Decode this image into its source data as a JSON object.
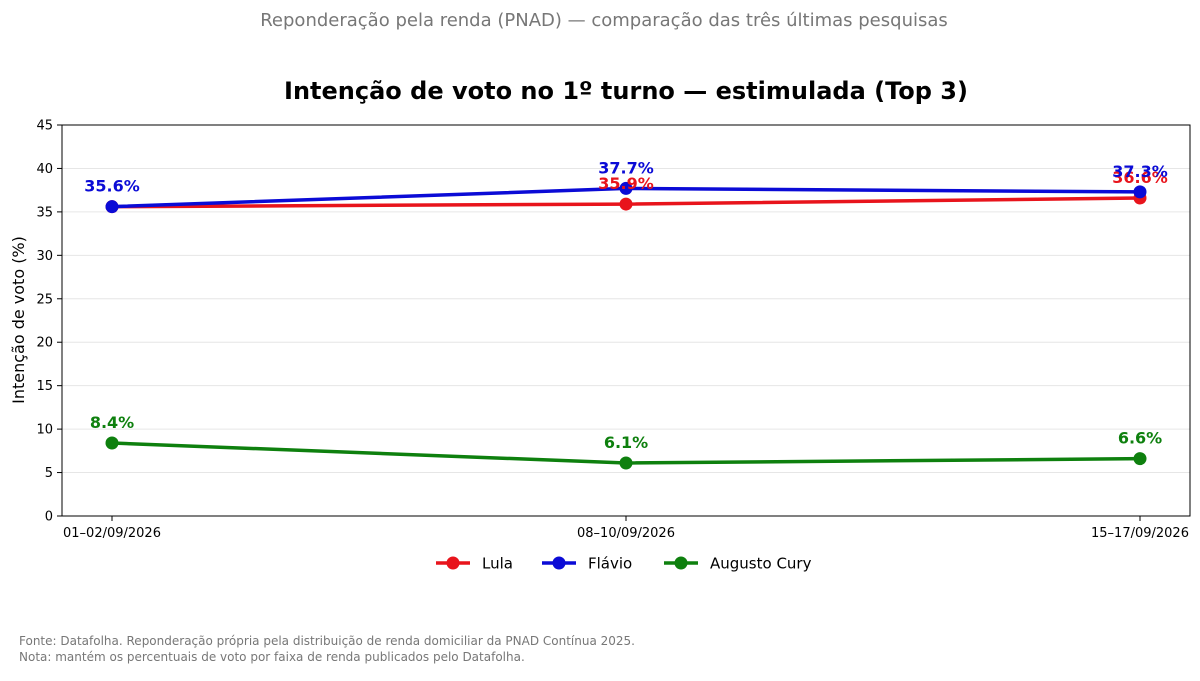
{
  "suptitle": "Reponderação pela renda (PNAD) — comparação das três últimas pesquisas",
  "chart_data": {
    "type": "line",
    "title": "Intenção de voto no 1º turno — estimulada (Top 3)",
    "xlabel": "",
    "ylabel": "Intenção de voto (%)",
    "categories": [
      "01–02/09/2026",
      "08–10/09/2026",
      "15–17/09/2026"
    ],
    "ylim": [
      0,
      45
    ],
    "yticks": [
      0,
      5,
      10,
      15,
      20,
      25,
      30,
      35,
      40,
      45
    ],
    "grid": true,
    "legend": "bottom-center",
    "series": [
      {
        "name": "Lula",
        "color": "#e8141c",
        "values": [
          35.6,
          35.9,
          36.6
        ],
        "labels": [
          "",
          "35.9%",
          "36.6%"
        ]
      },
      {
        "name": "Flávio",
        "color": "#0b0bd6",
        "values": [
          35.6,
          37.7,
          37.3
        ],
        "labels": [
          "35.6%",
          "37.7%",
          "37.3%"
        ]
      },
      {
        "name": "Augusto Cury",
        "color": "#0e800e",
        "values": [
          8.4,
          6.1,
          6.6
        ],
        "labels": [
          "8.4%",
          "6.1%",
          "6.6%"
        ]
      }
    ]
  },
  "footer": {
    "source": "Fonte: Datafolha. Reponderação própria pela distribuição de renda domiciliar da PNAD Contínua 2025.",
    "note": "Nota: mantém os percentuais de voto por faixa de renda publicados pelo Datafolha."
  }
}
